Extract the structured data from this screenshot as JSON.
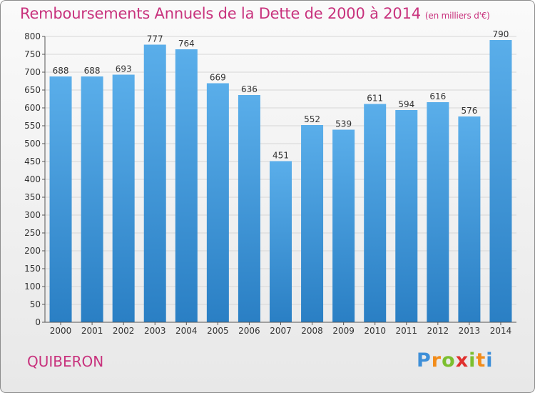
{
  "header": {
    "title": "Remboursements Annuels de la Dette de 2000 à 2014",
    "subtitle": "(en milliers d'€)"
  },
  "footer": {
    "city": "QUIBERON",
    "logo": "Proxiti"
  },
  "colors": {
    "title": "#c8327d",
    "bar_light": "#5aaeea",
    "bar_dark": "#2a7fc4",
    "grid": "#d6d6d6"
  },
  "chart_data": {
    "type": "bar",
    "title": "Remboursements Annuels de la Dette de 2000 à 2014",
    "xlabel": "",
    "ylabel": "",
    "categories": [
      "2000",
      "2001",
      "2002",
      "2003",
      "2004",
      "2005",
      "2006",
      "2007",
      "2008",
      "2009",
      "2010",
      "2011",
      "2012",
      "2013",
      "2014"
    ],
    "values": [
      688,
      688,
      693,
      777,
      764,
      669,
      636,
      451,
      552,
      539,
      611,
      594,
      616,
      576,
      790
    ],
    "ylim": [
      0,
      800
    ],
    "yticks": [
      0,
      50,
      100,
      150,
      200,
      250,
      300,
      350,
      400,
      450,
      500,
      550,
      600,
      650,
      700,
      750,
      800
    ],
    "grid": true
  }
}
